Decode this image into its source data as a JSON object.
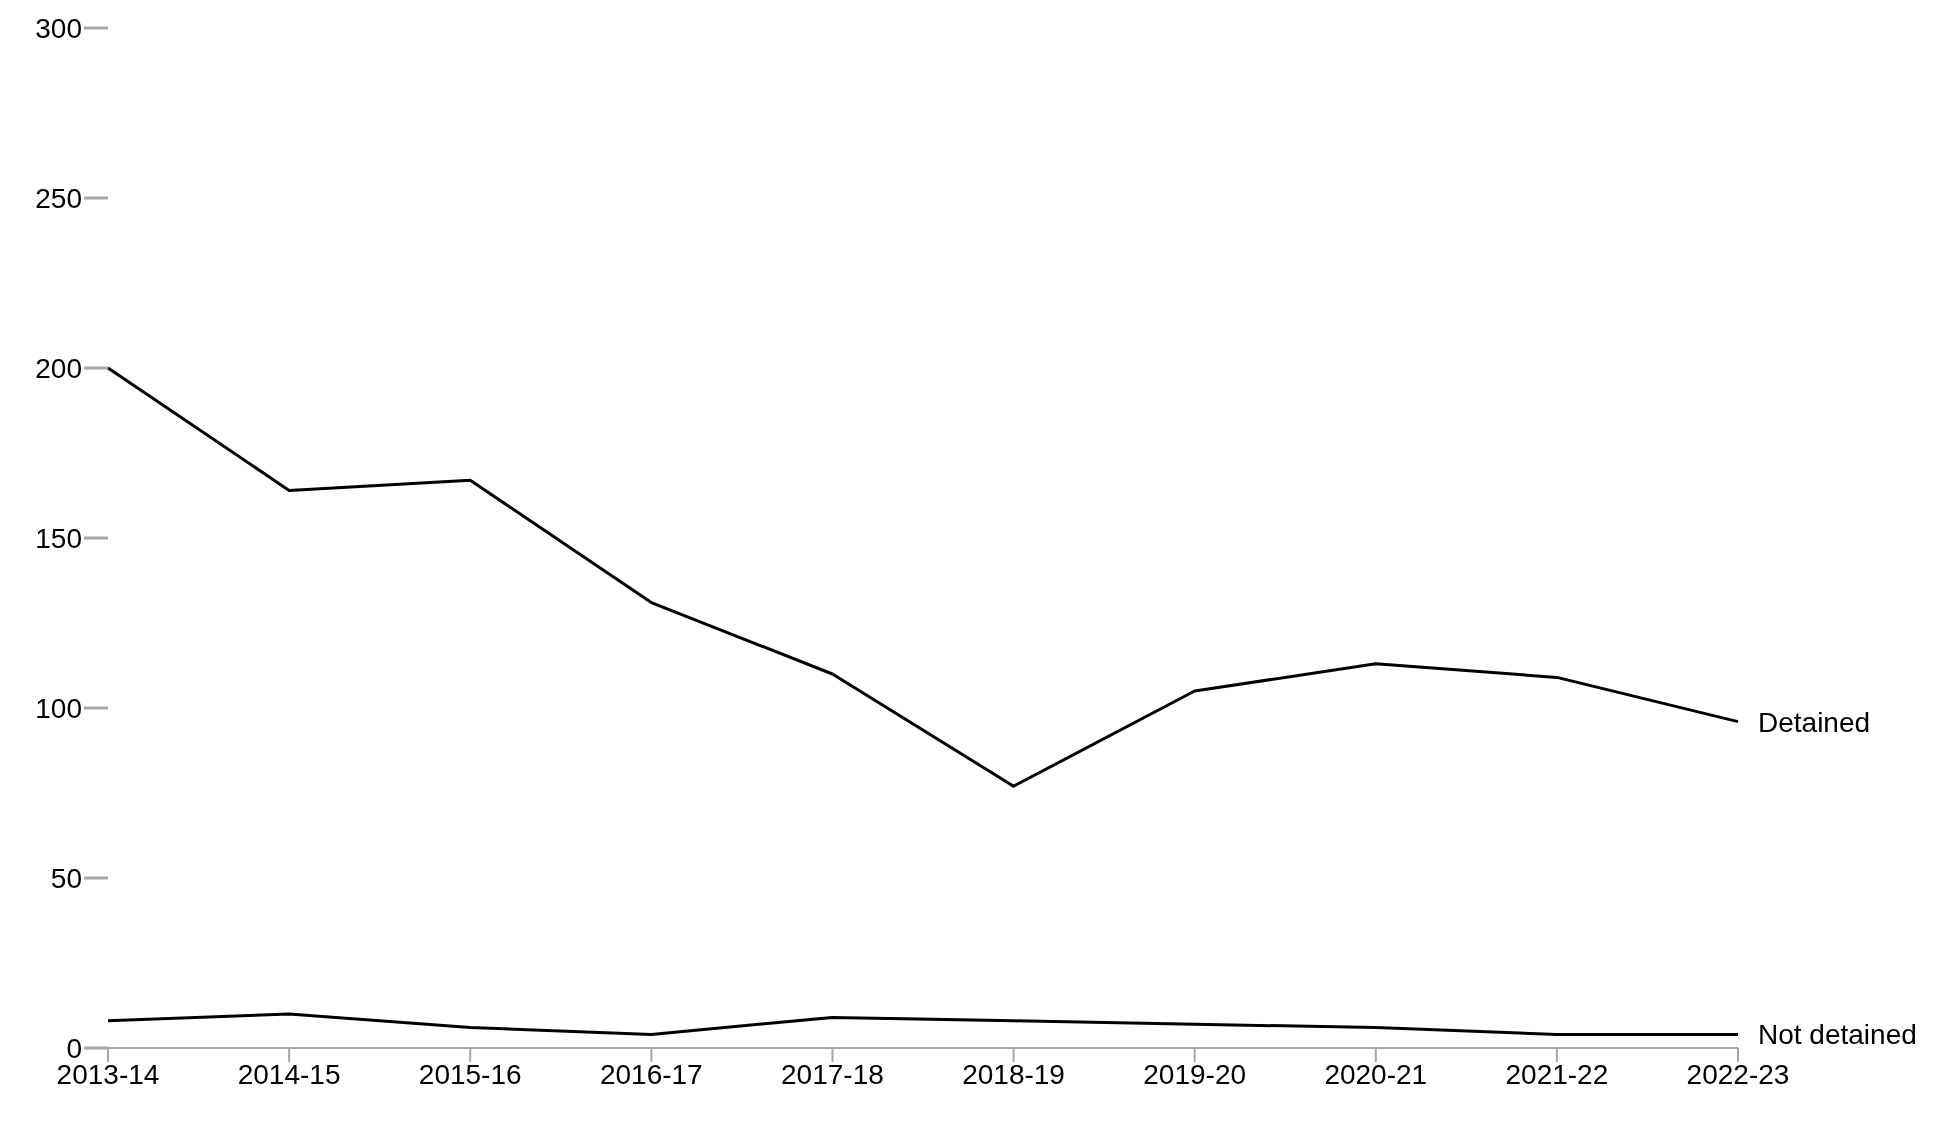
{
  "chart_data": {
    "type": "line",
    "categories": [
      "2013-14",
      "2014-15",
      "2015-16",
      "2016-17",
      "2017-18",
      "2018-19",
      "2019-20",
      "2020-21",
      "2021-22",
      "2022-23"
    ],
    "series": [
      {
        "name": "Detained",
        "color": "#000000",
        "values": [
          200,
          164,
          167,
          131,
          110,
          77,
          105,
          113,
          109,
          96
        ]
      },
      {
        "name": "Not detained",
        "color": "#000000",
        "values": [
          8,
          10,
          6,
          4,
          9,
          8,
          7,
          6,
          4,
          4
        ]
      }
    ],
    "ylim": [
      0,
      300
    ],
    "yticks": [
      0,
      50,
      100,
      150,
      200,
      250,
      300
    ],
    "grid": false,
    "legend": false,
    "marker": "none",
    "line_style": "solid"
  }
}
